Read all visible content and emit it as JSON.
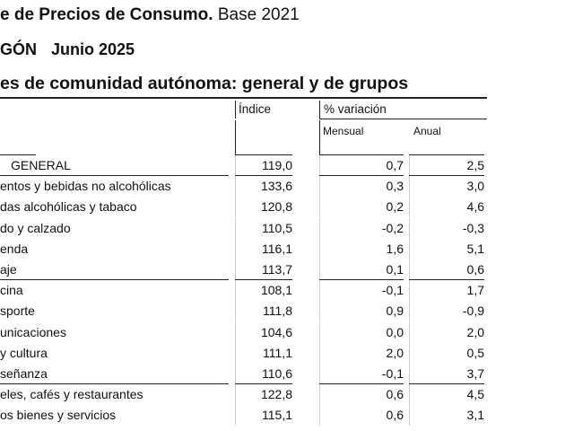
{
  "header": {
    "title_bold": "e de Precios de Consumo.",
    "title_normal": " Base 2021",
    "region": "GÓN",
    "period": "Junio 2025",
    "subtitle": "es de comunidad autónoma: general y de grupos"
  },
  "table": {
    "col_index": "Índice",
    "col_variation": "% variación",
    "col_monthly": "Mensual",
    "col_annual": "Anual",
    "rows": [
      {
        "label": "GENERAL",
        "index": "119,0",
        "monthly": "0,7",
        "annual": "2,5"
      },
      {
        "label": "entos y bebidas no alcohólicas",
        "index": "133,6",
        "monthly": "0,3",
        "annual": "3,0"
      },
      {
        "label": "das alcohólicas y tabaco",
        "index": "120,8",
        "monthly": "0,2",
        "annual": "4,6"
      },
      {
        "label": "do y calzado",
        "index": "110,5",
        "monthly": "-0,2",
        "annual": "-0,3"
      },
      {
        "label": "enda",
        "index": "116,1",
        "monthly": "1,6",
        "annual": "5,1"
      },
      {
        "label": "aje",
        "index": "113,7",
        "monthly": "0,1",
        "annual": "0,6"
      },
      {
        "label": "cina",
        "index": "108,1",
        "monthly": "-0,1",
        "annual": "1,7"
      },
      {
        "label": "sporte",
        "index": "111,8",
        "monthly": "0,9",
        "annual": "-0,9"
      },
      {
        "label": "unicaciones",
        "index": "104,6",
        "monthly": "0,0",
        "annual": "2,0"
      },
      {
        "label": "y cultura",
        "index": "111,1",
        "monthly": "2,0",
        "annual": "0,5"
      },
      {
        "label": "señanza",
        "index": "110,6",
        "monthly": "-0,1",
        "annual": "3,7"
      },
      {
        "label": "eles, cafés y restaurantes",
        "index": "122,8",
        "monthly": "0,6",
        "annual": "4,5"
      },
      {
        "label": "os bienes y servicios",
        "index": "115,1",
        "monthly": "0,6",
        "annual": "3,1"
      }
    ]
  }
}
